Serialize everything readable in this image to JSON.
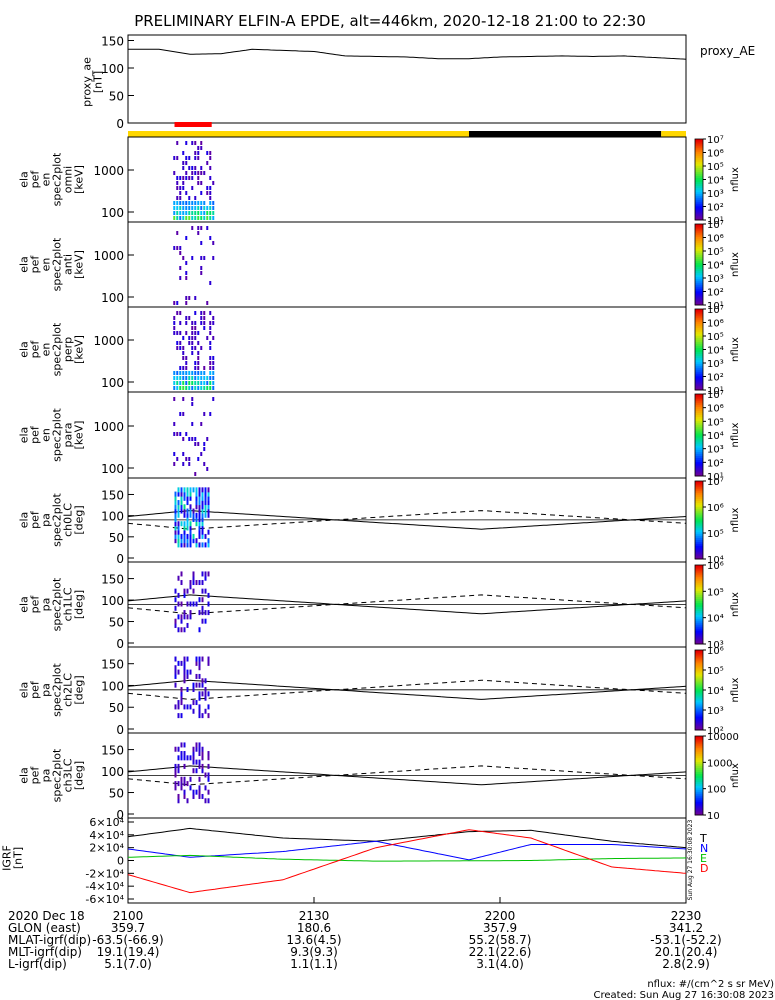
{
  "title": "PRELIMINARY ELFIN-A EPDE, alt=446km, 2020-12-18 21:00 to 22:30",
  "ae_panel": {
    "ylabel": [
      "proxy_ae",
      "[nT]"
    ],
    "legend": "proxy_AE",
    "yticks": [
      "0",
      "50",
      "100",
      "150"
    ]
  },
  "spec_panels": [
    {
      "ylabel": [
        "ela",
        "pef",
        "en",
        "spec2plot",
        "omni",
        "[keV]"
      ],
      "yticks": [
        "100",
        "1000"
      ],
      "cb_ticks": [
        "10¹",
        "10²",
        "10³",
        "10⁴",
        "10⁵",
        "10⁶",
        "10⁷"
      ],
      "cb_label": "nflux"
    },
    {
      "ylabel": [
        "ela",
        "pef",
        "en",
        "spec2plot",
        "anti",
        "[keV]"
      ],
      "yticks": [
        "100",
        "1000"
      ],
      "cb_ticks": [
        "10¹",
        "10²",
        "10³",
        "10⁴",
        "10⁵",
        "10⁶",
        "10⁷"
      ],
      "cb_label": "nflux"
    },
    {
      "ylabel": [
        "ela",
        "pef",
        "en",
        "spec2plot",
        "perp",
        "[keV]"
      ],
      "yticks": [
        "100",
        "1000"
      ],
      "cb_ticks": [
        "10¹",
        "10²",
        "10³",
        "10⁴",
        "10⁵",
        "10⁶",
        "10⁷"
      ],
      "cb_label": "nflux"
    },
    {
      "ylabel": [
        "ela",
        "pef",
        "en",
        "spec2plot",
        "para",
        "[keV]"
      ],
      "yticks": [
        "100",
        "1000"
      ],
      "cb_ticks": [
        "10¹",
        "10²",
        "10³",
        "10⁴",
        "10⁵",
        "10⁶",
        "10⁷"
      ],
      "cb_label": "nflux"
    }
  ],
  "pa_panels": [
    {
      "ylabel": [
        "ela",
        "pef",
        "pa",
        "spec2plot",
        "ch0LC",
        "[deg]"
      ],
      "yticks": [
        "0",
        "50",
        "100",
        "150"
      ],
      "cb_ticks": [
        "10⁴",
        "10⁵",
        "10⁶",
        "10⁷"
      ],
      "cb_label": "nflux"
    },
    {
      "ylabel": [
        "ela",
        "pef",
        "pa",
        "spec2plot",
        "ch1LC",
        "[deg]"
      ],
      "yticks": [
        "0",
        "50",
        "100",
        "150"
      ],
      "cb_ticks": [
        "10³",
        "10⁴",
        "10⁵",
        "10⁶"
      ],
      "cb_label": "nflux"
    },
    {
      "ylabel": [
        "ela",
        "pef",
        "pa",
        "spec2plot",
        "ch2LC",
        "[deg]"
      ],
      "yticks": [
        "0",
        "50",
        "100",
        "150"
      ],
      "cb_ticks": [
        "10²",
        "10³",
        "10⁴",
        "10⁵",
        "10⁶"
      ],
      "cb_label": "nflux"
    },
    {
      "ylabel": [
        "ela",
        "pef",
        "pa",
        "spec2plot",
        "ch3LC",
        "[deg]"
      ],
      "yticks": [
        "0",
        "50",
        "100",
        "150"
      ],
      "cb_ticks": [
        "10",
        "100",
        "1000",
        "10000"
      ],
      "cb_label": "nflux"
    }
  ],
  "igrf_panel": {
    "ylabel": [
      "IGRF",
      "[nT]"
    ],
    "yticks": [
      "-6×10⁴",
      "-4×10⁴",
      "-2×10⁴",
      "0",
      "2×10⁴",
      "4×10⁴",
      "6×10⁴"
    ],
    "legend": [
      {
        "label": "T",
        "color": "#000000"
      },
      {
        "label": "N",
        "color": "#0000ff"
      },
      {
        "label": "E",
        "color": "#00c000"
      },
      {
        "label": "D",
        "color": "#ff0000"
      }
    ],
    "side_stamp": "Sun Aug 27 16:30:08 2023"
  },
  "xaxis": {
    "rows": [
      {
        "label": "2020 Dec 18",
        "values": [
          "2100",
          "2130",
          "2200",
          "2230"
        ]
      },
      {
        "label": "GLON (east)",
        "values": [
          "359.7",
          "180.6",
          "357.9",
          "341.2"
        ]
      },
      {
        "label": "MLAT-igrf(dip)",
        "values": [
          "-63.5(-66.9)",
          "13.6(4.5)",
          "55.2(58.7)",
          "-53.1(-52.2)"
        ]
      },
      {
        "label": "MLT-igrf(dip)",
        "values": [
          "19.1(19.4)",
          "9.3(9.3)",
          "22.1(22.6)",
          "20.1(20.4)"
        ]
      },
      {
        "label": "L-igrf(dip)",
        "values": [
          "5.1(7.0)",
          "1.1(1.1)",
          "3.1(4.0)",
          "2.8(2.9)"
        ]
      }
    ]
  },
  "footer": {
    "units": "nflux: #/(cm^2 s sr MeV)",
    "created": "Created: Sun Aug 27 16:30:08 2023"
  },
  "colors": {
    "sunlit_bar": "#ffd700",
    "shadow_bar": "#000000",
    "science_bar": "#ff0000"
  },
  "chart_data": {
    "type": "line",
    "title": "PRELIMINARY ELFIN-A EPDE, alt=446km, 2020-12-18 21:00 to 22:30",
    "x_range_utc": [
      "21:00",
      "22:30"
    ],
    "proxy_ae": {
      "x_min": [
        0,
        5,
        10,
        15,
        20,
        25,
        30,
        35,
        40,
        45,
        50,
        55,
        60,
        65,
        70,
        75,
        80,
        85,
        90
      ],
      "values": [
        134,
        134,
        125,
        126,
        134,
        132,
        130,
        122,
        121,
        120,
        117,
        117,
        120,
        121,
        122,
        121,
        122,
        119,
        116
      ],
      "ylim": [
        0,
        160
      ]
    },
    "shading_bar": [
      {
        "state": "sunlit",
        "from_min": 0,
        "to_min": 55
      },
      {
        "state": "shadow",
        "from_min": 55,
        "to_min": 86
      },
      {
        "state": "sunlit",
        "from_min": 86,
        "to_min": 90
      }
    ],
    "science_intervals_min": [
      [
        7.5,
        13.5
      ]
    ],
    "pitch_angle_lines": {
      "solid_loss_cone_deg": [
        98,
        112,
        68,
        98
      ],
      "dashed_anti_loss_cone_deg": [
        82,
        68,
        112,
        82
      ],
      "x_min": [
        0,
        10,
        57,
        90
      ],
      "ylim": [
        0,
        180
      ]
    },
    "igrf": {
      "ylim": [
        -60000,
        60000
      ],
      "series": [
        {
          "name": "T",
          "values": [
            37000,
            50000,
            35000,
            30000,
            45000,
            47000,
            30000,
            20000
          ]
        },
        {
          "name": "N",
          "values": [
            18000,
            5000,
            14000,
            30000,
            1000,
            25000,
            25000,
            18000
          ]
        },
        {
          "name": "E",
          "values": [
            5000,
            8000,
            2000,
            -1000,
            -500,
            0,
            3000,
            4000
          ]
        },
        {
          "name": "D",
          "values": [
            -22000,
            -50000,
            -30000,
            20000,
            48000,
            35000,
            -10000,
            -20000
          ]
        }
      ],
      "x_min": [
        0,
        10,
        25,
        40,
        55,
        65,
        78,
        90
      ]
    }
  }
}
